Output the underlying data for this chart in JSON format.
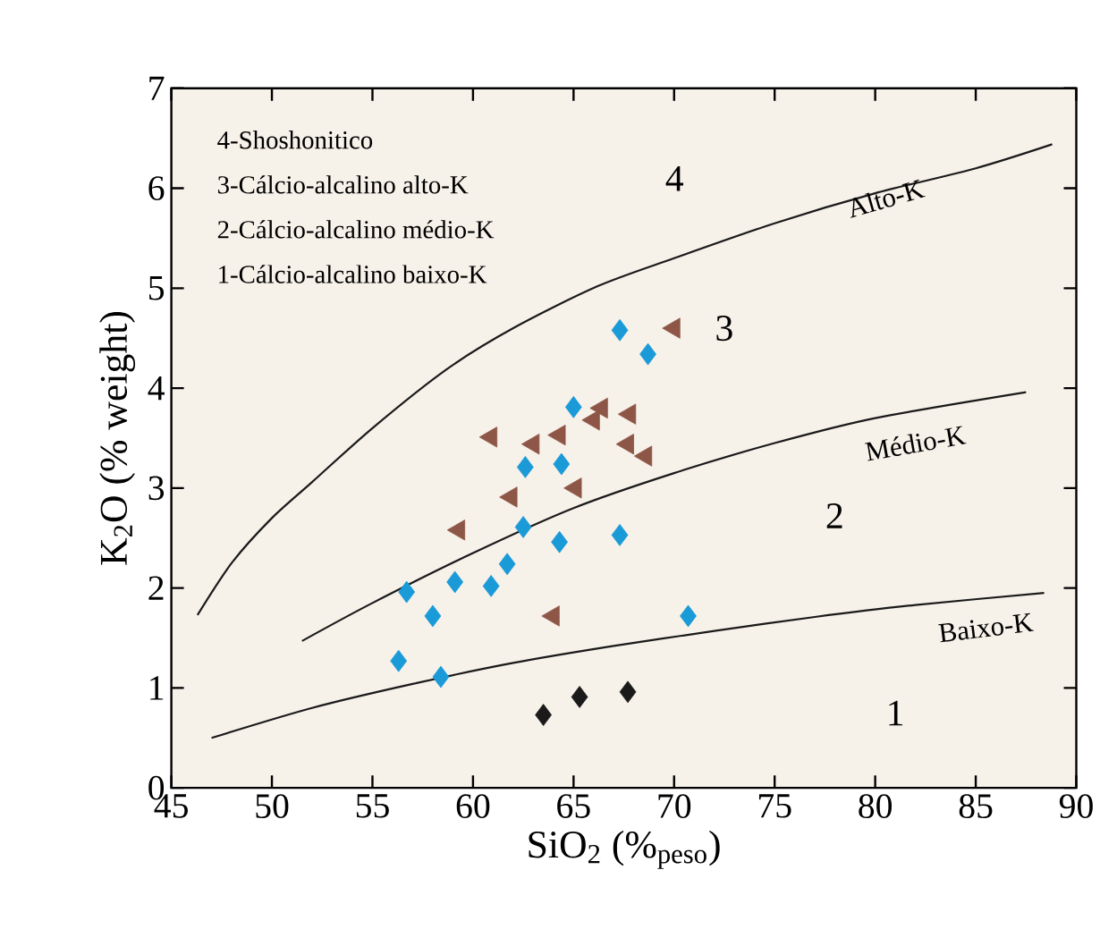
{
  "chart_data": {
    "type": "scatter",
    "xlabel": "SiO$_{2}$ (%$_{peso}$)",
    "ylabel": "K$_{2}$O (% weight)",
    "xlim": [
      45,
      90
    ],
    "ylim": [
      0,
      7
    ],
    "xticks": [
      45,
      50,
      55,
      60,
      65,
      70,
      75,
      80,
      85,
      90
    ],
    "yticks": [
      0,
      1,
      2,
      3,
      4,
      5,
      6,
      7
    ],
    "series": [
      {
        "type": "line",
        "color": "#1a1a1a",
        "marker": "none",
        "x": [
          46.3,
          48,
          50,
          52,
          55,
          58.7,
          62,
          66.2,
          70,
          75,
          80,
          85,
          88.8
        ],
        "values": [
          1.73,
          2.25,
          2.7,
          3.06,
          3.6,
          4.19,
          4.6,
          5.02,
          5.3,
          5.65,
          5.95,
          6.2,
          6.44
        ]
      },
      {
        "type": "line",
        "color": "#1a1a1a",
        "marker": "none",
        "x": [
          51.5,
          55,
          60,
          65,
          70,
          75,
          80,
          87.5
        ],
        "values": [
          1.47,
          1.85,
          2.35,
          2.8,
          3.15,
          3.45,
          3.7,
          3.96
        ]
      },
      {
        "type": "line",
        "color": "#1a1a1a",
        "marker": "none",
        "x": [
          47,
          52,
          57,
          62,
          67,
          72,
          77,
          82,
          88.4
        ],
        "values": [
          0.5,
          0.8,
          1.04,
          1.25,
          1.42,
          1.57,
          1.71,
          1.83,
          1.95
        ]
      },
      {
        "color": "#1b9ad8",
        "marker": "diamond",
        "x": [
          67.3,
          68.7,
          65.0,
          62.6,
          64.4,
          62.5,
          64.3,
          67.3,
          61.7,
          60.9,
          59.1,
          56.7,
          58.0,
          70.7,
          56.3,
          58.4
        ],
        "values": [
          4.58,
          4.34,
          3.81,
          3.21,
          3.24,
          2.61,
          2.46,
          2.53,
          2.24,
          2.02,
          2.06,
          1.96,
          1.72,
          1.72,
          1.27,
          1.11
        ]
      },
      {
        "color": "#8e5646",
        "marker": "triangle",
        "x": [
          70.0,
          60.9,
          63.0,
          64.3,
          66.4,
          66.0,
          67.8,
          67.7,
          68.6,
          65.1,
          61.9,
          59.3,
          64.0
        ],
        "values": [
          4.6,
          3.51,
          3.44,
          3.53,
          3.8,
          3.68,
          3.74,
          3.44,
          3.32,
          3.0,
          2.91,
          2.58,
          1.72
        ]
      },
      {
        "color": "#1a1a1a",
        "marker": "diamond",
        "x": [
          63.5,
          65.3,
          67.7
        ],
        "values": [
          0.73,
          0.91,
          0.96
        ]
      }
    ],
    "annotations": [
      "4-Shoshonitico",
      "3-Cálcio-alcalino alto-K",
      "2-Cálcio-alcalino médio-K",
      "1-Cálcio-alcalino baixo-K",
      "Alto-K",
      "Médio-K",
      "Baixo-K",
      "4",
      "3",
      "2",
      "1"
    ]
  }
}
